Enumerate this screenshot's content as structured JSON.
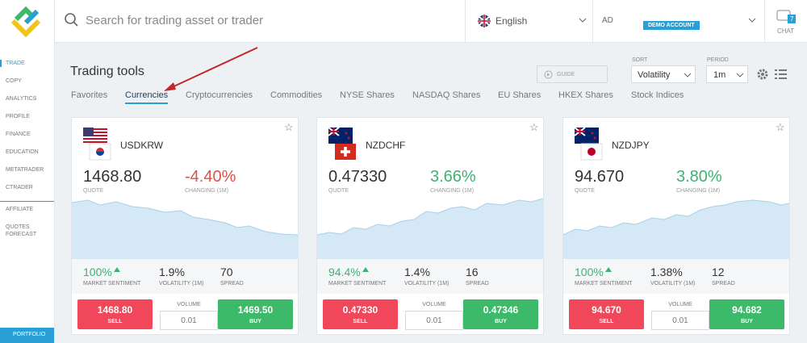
{
  "header": {
    "search_placeholder": "Search for trading asset or trader",
    "language": "English",
    "account_label": "AD",
    "account_type": "DEMO ACCOUNT",
    "chat_label": "CHAT",
    "chat_badge": "7"
  },
  "sidebar": {
    "items": [
      "TRADE",
      "COPY",
      "ANALYTICS",
      "PROFILE",
      "FINANCE",
      "EDUCATION",
      "METATRADER",
      "CTRADER",
      "AFFILIATE",
      "QUOTES FORECAST"
    ],
    "active": 0,
    "portfolio": "PORTFOLIO"
  },
  "toolbar": {
    "title": "Trading tools",
    "guide": "GUIDE",
    "sort_label": "SORT",
    "sort_value": "Volatility",
    "period_label": "PERIOD",
    "period_value": "1m"
  },
  "tabs": {
    "items": [
      "Favorites",
      "Currencies",
      "Cryptocurrencies",
      "Commodities",
      "NYSE Shares",
      "NASDAQ Shares",
      "EU Shares",
      "HKEX Shares",
      "Stock Indices"
    ],
    "active": 1
  },
  "cards": [
    {
      "symbol": "USDKRW",
      "quote": "1468.80",
      "quote_label": "QUOTE",
      "change": "-4.40%",
      "change_label": "CHANGING (1M)",
      "sentiment": "100%",
      "sentiment_label": "MARKET SENTIMENT",
      "volatility": "1.9%",
      "volatility_label": "VOLATILITY (1M)",
      "spread": "70",
      "spread_label": "SPREAD",
      "sell_price": "1468.80",
      "sell_label": "SELL",
      "volume_label": "VOLUME",
      "volume": "0.01",
      "buy_price": "1469.50",
      "buy_label": "BUY"
    },
    {
      "symbol": "NZDCHF",
      "quote": "0.47330",
      "quote_label": "QUOTE",
      "change": "3.66%",
      "change_label": "CHANGING (1M)",
      "sentiment": "94.4%",
      "sentiment_label": "MARKET SENTIMENT",
      "volatility": "1.4%",
      "volatility_label": "VOLATILITY (1M)",
      "spread": "16",
      "spread_label": "SPREAD",
      "sell_price": "0.47330",
      "sell_label": "SELL",
      "volume_label": "VOLUME",
      "volume": "0.01",
      "buy_price": "0.47346",
      "buy_label": "BUY"
    },
    {
      "symbol": "NZDJPY",
      "quote": "94.670",
      "quote_label": "QUOTE",
      "change": "3.80%",
      "change_label": "CHANGING (1M)",
      "sentiment": "100%",
      "sentiment_label": "MARKET SENTIMENT",
      "volatility": "1.38%",
      "volatility_label": "VOLATILITY (1M)",
      "spread": "12",
      "spread_label": "SPREAD",
      "sell_price": "94.670",
      "sell_label": "SELL",
      "volume_label": "VOLUME",
      "volume": "0.01",
      "buy_price": "94.682",
      "buy_label": "BUY"
    }
  ]
}
